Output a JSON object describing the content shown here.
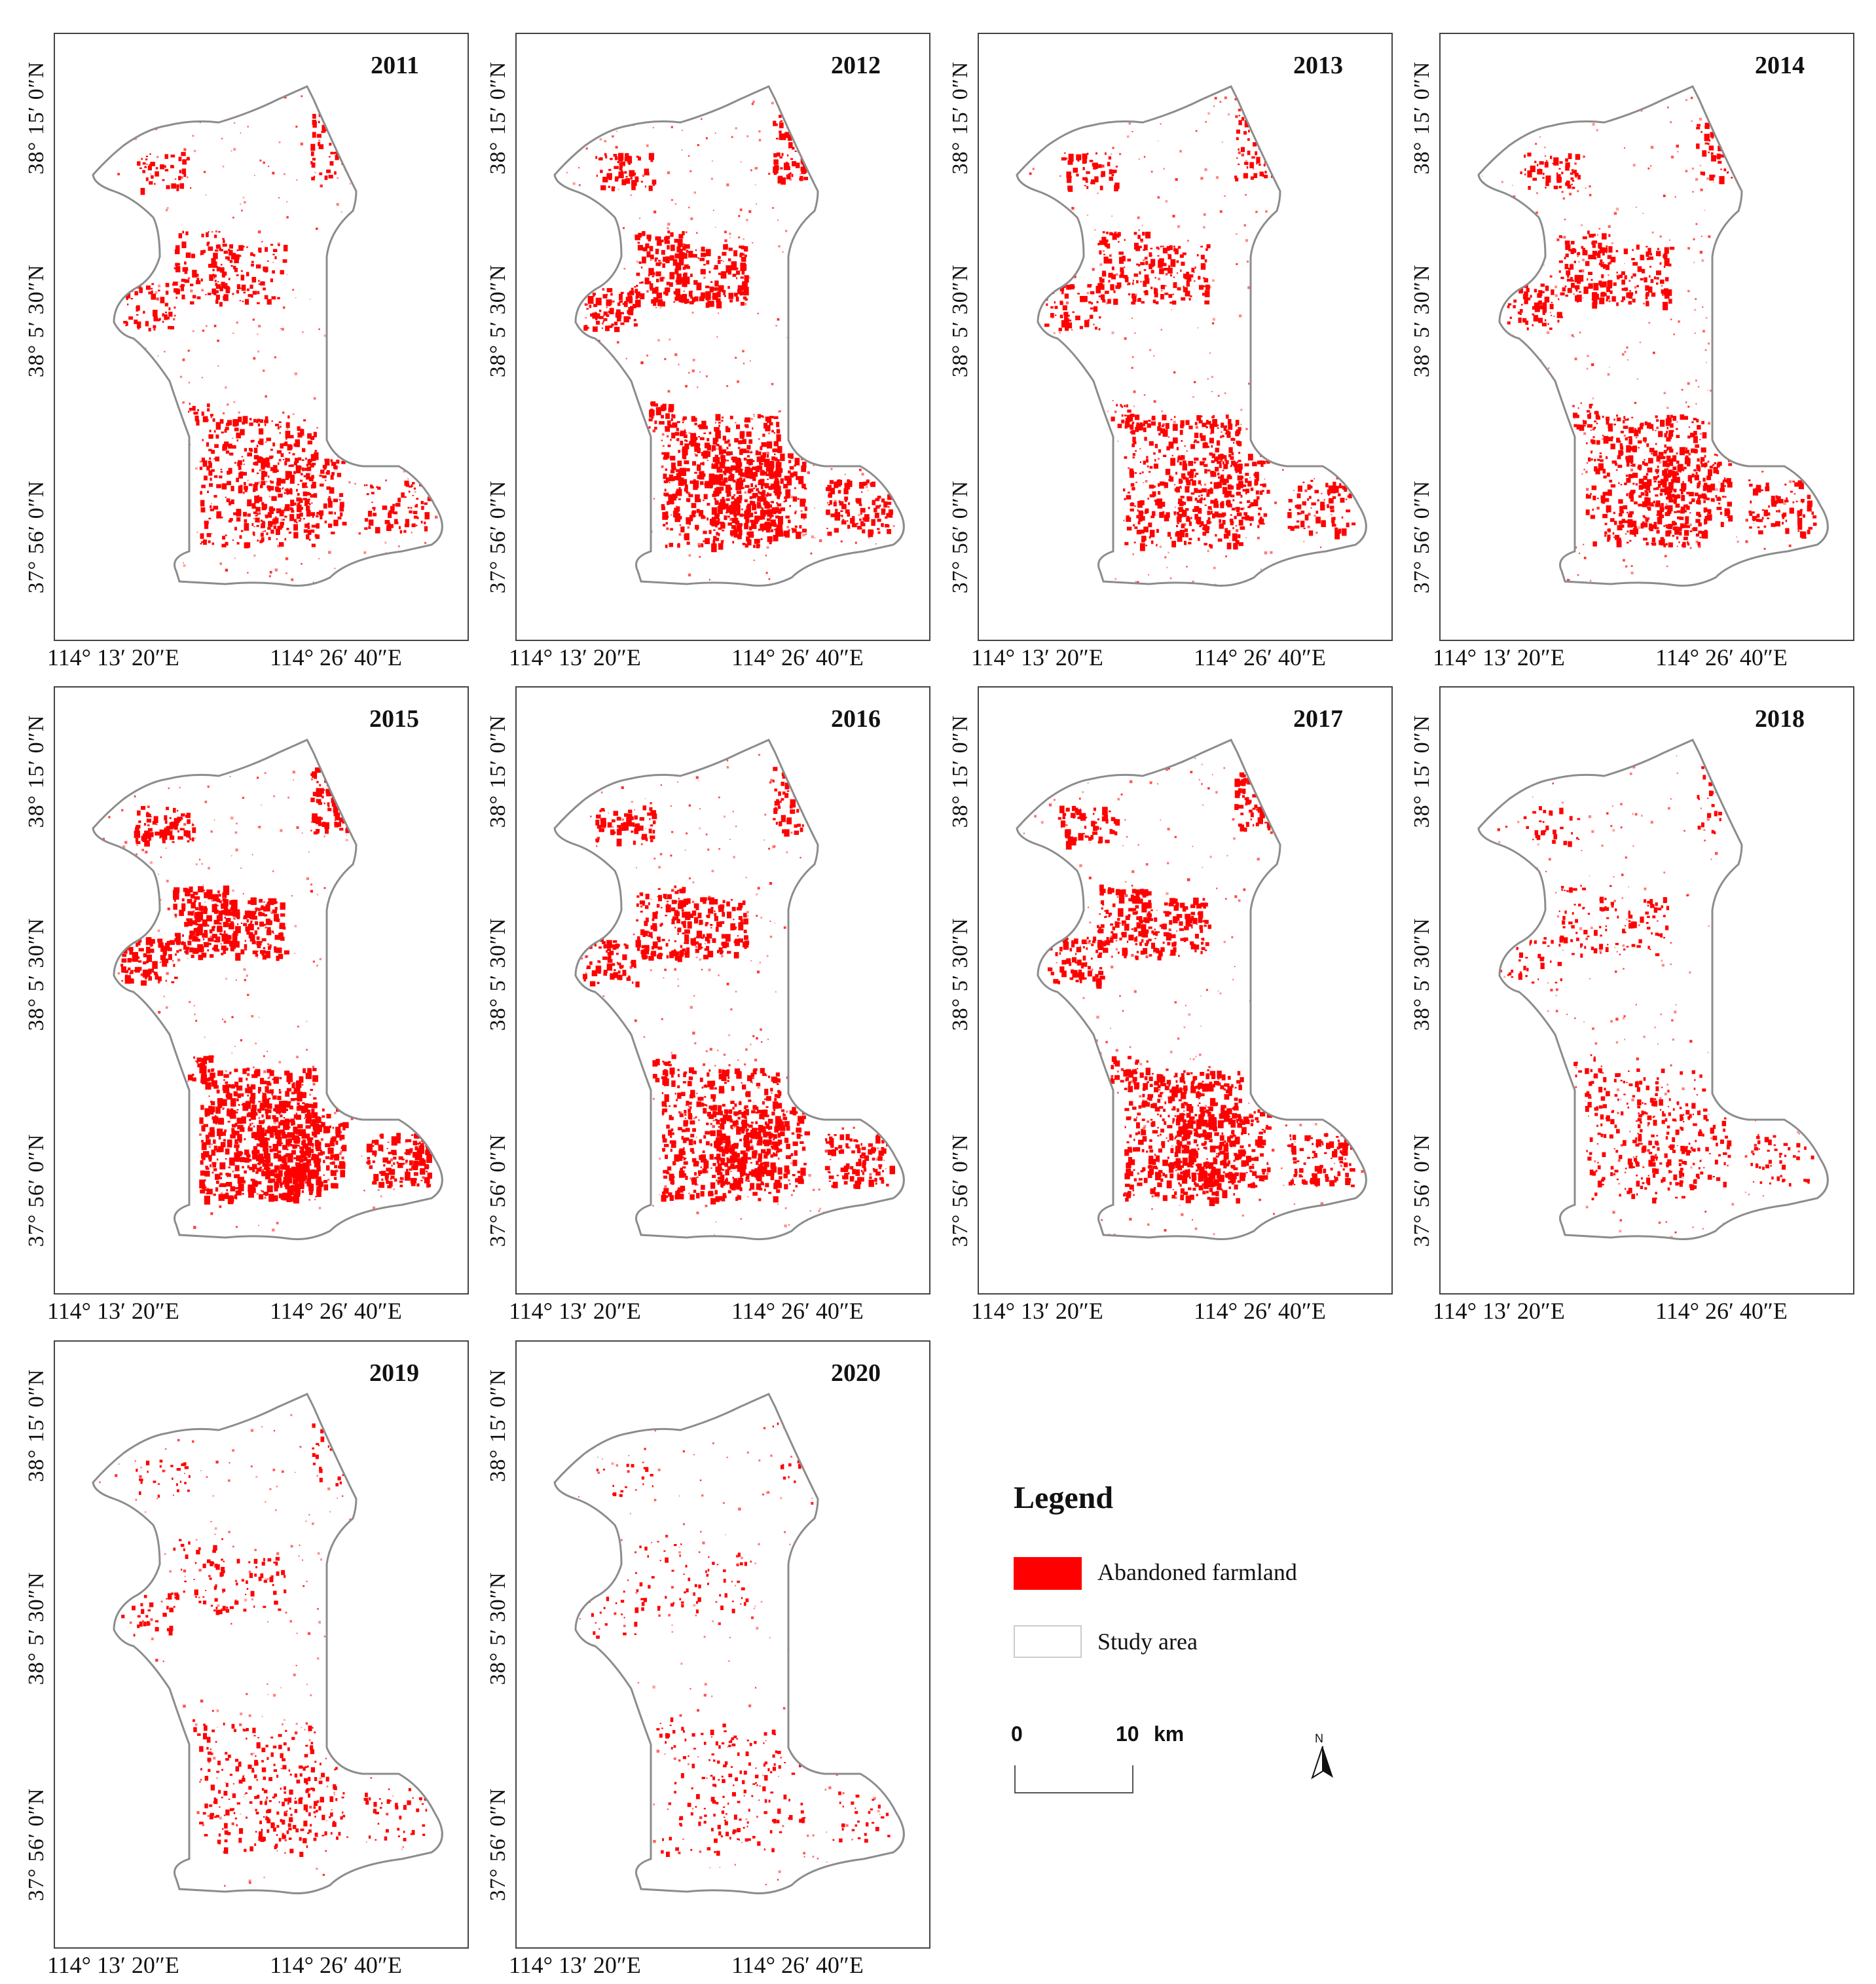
{
  "figure": {
    "panels": [
      {
        "year": "2011",
        "intensity": 0.55
      },
      {
        "year": "2012",
        "intensity": 0.8
      },
      {
        "year": "2013",
        "intensity": 0.6
      },
      {
        "year": "2014",
        "intensity": 0.65
      },
      {
        "year": "2015",
        "intensity": 0.9
      },
      {
        "year": "2016",
        "intensity": 0.75
      },
      {
        "year": "2017",
        "intensity": 0.75
      },
      {
        "year": "2018",
        "intensity": 0.35
      },
      {
        "year": "2019",
        "intensity": 0.3
      },
      {
        "year": "2020",
        "intensity": 0.2
      }
    ],
    "lat_labels": [
      "38° 15′ 0″N",
      "38° 5′ 30″N",
      "37° 56′ 0″N"
    ],
    "lon_labels": [
      "114° 13′ 20″E",
      "114° 26′ 40″E"
    ]
  },
  "legend": {
    "title": "Legend",
    "items": [
      {
        "label": "Abandoned farmland",
        "color": "#ff0000"
      },
      {
        "label": "Study area",
        "color": "#ffffff"
      }
    ]
  },
  "scale_bar": {
    "start": "0",
    "end": "10",
    "unit": "km"
  },
  "north_arrow": {
    "label": "N"
  },
  "colors": {
    "abandoned": "#ff0000",
    "boundary": "#8c8c8c",
    "frame": "#444444"
  }
}
